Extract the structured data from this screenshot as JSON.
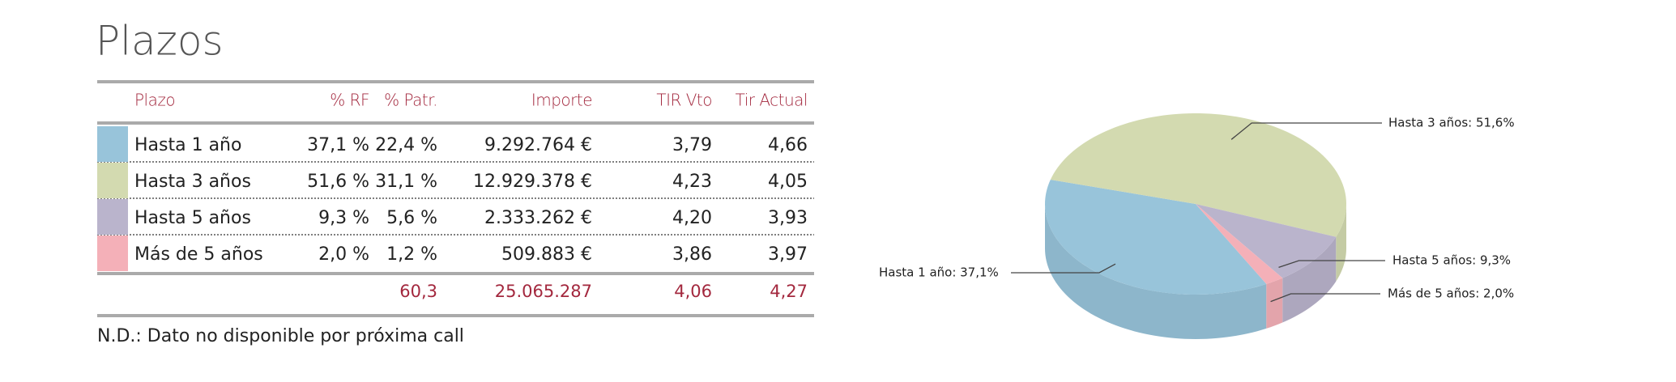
{
  "title": "Plazos",
  "table": {
    "headers": [
      "Plazo",
      "% RF",
      "% Patr.",
      "Importe",
      "TIR Vto",
      "Tir Actual"
    ],
    "rows": [
      {
        "color": "#98c4da",
        "cells": [
          "Hasta 1 año",
          "37,1 %",
          "22,4 %",
          "9.292.764 €",
          "3,79",
          "4,66"
        ]
      },
      {
        "color": "#d3dab0",
        "cells": [
          "Hasta 3 años",
          "51,6 %",
          "31,1 %",
          "12.929.378 €",
          "4,23",
          "4,05"
        ]
      },
      {
        "color": "#bab4cc",
        "cells": [
          "Hasta 5 años",
          "9,3 %",
          "5,6 %",
          "2.333.262 €",
          "4,20",
          "3,93"
        ]
      },
      {
        "color": "#f4b0b8",
        "cells": [
          "Más de 5 años",
          "2,0 %",
          "1,2 %",
          "509.883 €",
          "3,86",
          "3,97"
        ]
      }
    ],
    "totals": [
      "60,3",
      "25.065.287",
      "4,06",
      "4,27"
    ]
  },
  "note": "N.D.: Dato no disponible por próxima call",
  "chart_data": {
    "type": "pie",
    "values": [
      37.1,
      51.6,
      9.3,
      2.0
    ],
    "value_labels": [
      "Hasta 1 año: 37,1%",
      "Hasta 3 años: 51,6%",
      "Hasta 5 años: 9,3%",
      "Más de 5 años: 2,0%"
    ],
    "colors": [
      "#98c4da",
      "#d3dab0",
      "#bab4cc",
      "#f4b0b8"
    ]
  }
}
